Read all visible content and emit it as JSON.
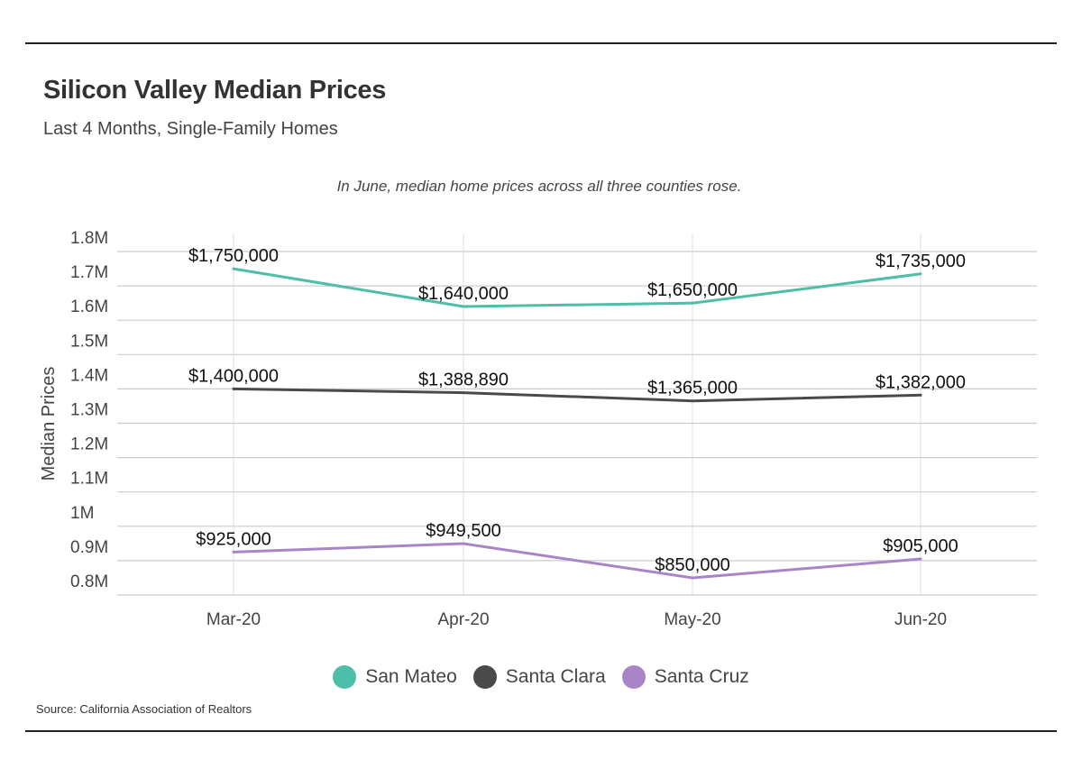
{
  "title": "Silicon Valley Median Prices",
  "subtitle": "Last 4 Months, Single-Family Homes",
  "source": "Source:  California Association of Realtors",
  "chart_data": {
    "type": "line",
    "annotation": "In June, median home prices across all three counties rose.",
    "ylabel": "Median Prices",
    "xlabel": "",
    "categories": [
      "Mar-20",
      "Apr-20",
      "May-20",
      "Jun-20"
    ],
    "ylim": [
      800000,
      1800000
    ],
    "yticks": [
      {
        "value": 1800000,
        "label": "1.8M"
      },
      {
        "value": 1700000,
        "label": "1.7M"
      },
      {
        "value": 1600000,
        "label": "1.6M"
      },
      {
        "value": 1500000,
        "label": "1.5M"
      },
      {
        "value": 1400000,
        "label": "1.4M"
      },
      {
        "value": 1300000,
        "label": "1.3M"
      },
      {
        "value": 1200000,
        "label": "1.2M"
      },
      {
        "value": 1100000,
        "label": "1.1M"
      },
      {
        "value": 1000000,
        "label": "1M"
      },
      {
        "value": 900000,
        "label": "0.9M"
      },
      {
        "value": 800000,
        "label": "0.8M"
      }
    ],
    "grid": true,
    "legend_position": "bottom",
    "series": [
      {
        "name": "San Mateo",
        "color": "#4dbfa8",
        "values": [
          1750000,
          1640000,
          1650000,
          1735000
        ],
        "labels": [
          "$1,750,000",
          "$1,640,000",
          "$1,650,000",
          "$1,735,000"
        ]
      },
      {
        "name": "Santa Clara",
        "color": "#4a4a4a",
        "values": [
          1400000,
          1388890,
          1365000,
          1382000
        ],
        "labels": [
          "$1,400,000",
          "$1,388,890",
          "$1,365,000",
          "$1,382,000"
        ]
      },
      {
        "name": "Santa Cruz",
        "color": "#a985c8",
        "values": [
          925000,
          949500,
          850000,
          905000
        ],
        "labels": [
          "$925,000",
          "$949,500",
          "$850,000",
          "$905,000"
        ]
      }
    ]
  }
}
